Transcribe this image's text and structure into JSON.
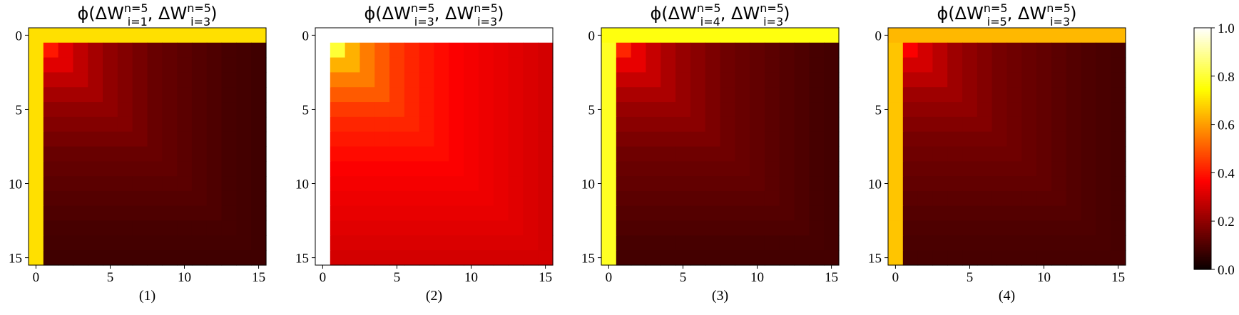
{
  "chart_data": {
    "type": "heatmap",
    "grid_size": 16,
    "colormap": "hot",
    "value_range": [
      0.0,
      1.0
    ],
    "panels": [
      {
        "title_base": "ϕ(ΔW",
        "first_sub": "i=1",
        "second_sub": "i=3",
        "sup": "n=5",
        "caption": "(1)",
        "border_values": [
          0.7,
          0.4,
          0.32,
          0.27,
          0.23,
          0.2,
          0.18,
          0.16,
          0.14,
          0.13,
          0.12,
          0.11,
          0.1,
          0.09,
          0.085,
          0.08
        ],
        "first_row_value": 0.7,
        "first_col_value": 0.7
      },
      {
        "title_base": "ϕ(ΔW",
        "first_sub": "i=3",
        "second_sub": "i=3",
        "sup": "n=5",
        "caption": "(2)",
        "border_values": [
          1.0,
          0.8,
          0.63,
          0.55,
          0.5,
          0.45,
          0.42,
          0.4,
          0.38,
          0.36,
          0.35,
          0.34,
          0.33,
          0.32,
          0.31,
          0.3
        ],
        "first_row_value": 1.0,
        "first_col_value": 1.0
      },
      {
        "title_base": "ϕ(ΔW",
        "first_sub": "i=4",
        "second_sub": "i=3",
        "sup": "n=5",
        "caption": "(3)",
        "border_values": [
          0.72,
          0.42,
          0.33,
          0.28,
          0.24,
          0.21,
          0.19,
          0.17,
          0.15,
          0.14,
          0.13,
          0.12,
          0.11,
          0.1,
          0.09,
          0.085
        ],
        "first_row_value": 0.76,
        "first_col_value": 0.78
      },
      {
        "title_base": "ϕ(ΔW",
        "first_sub": "i=5",
        "second_sub": "i=3",
        "sup": "n=5",
        "caption": "(4)",
        "border_values": [
          0.55,
          0.36,
          0.3,
          0.26,
          0.22,
          0.2,
          0.18,
          0.16,
          0.15,
          0.14,
          0.13,
          0.12,
          0.11,
          0.1,
          0.095,
          0.09
        ],
        "first_row_value": 0.64,
        "first_col_value": 0.66
      }
    ],
    "x_ticks": [
      "0",
      "5",
      "10",
      "15"
    ],
    "y_ticks": [
      "0",
      "5",
      "10",
      "15"
    ],
    "tick_values": [
      0,
      5,
      10,
      15
    ],
    "colorbar_ticks": [
      "0.0",
      "0.2",
      "0.4",
      "0.6",
      "0.8",
      "1.0"
    ],
    "colorbar_values": [
      0.0,
      0.2,
      0.4,
      0.6,
      0.8,
      1.0
    ]
  }
}
